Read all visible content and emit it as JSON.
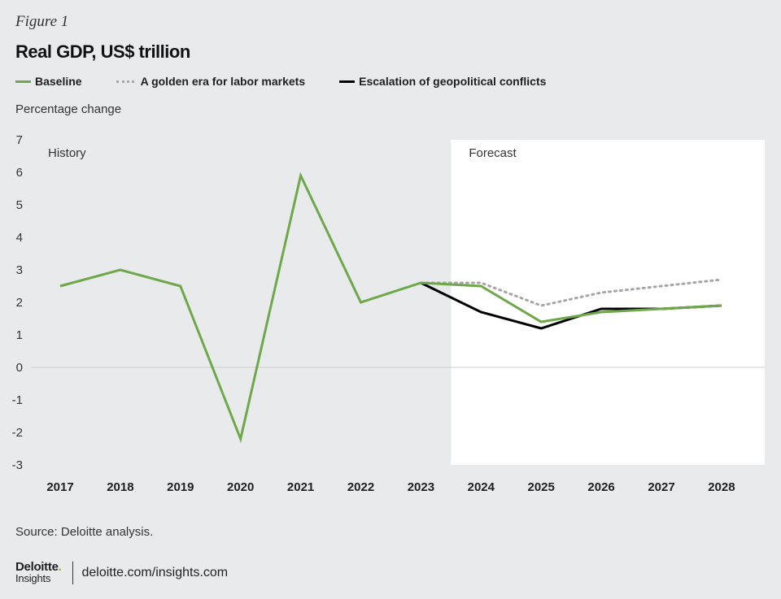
{
  "figure_label": "Figure 1",
  "title": "Real GDP, US$ trillion",
  "legend": [
    {
      "name": "Baseline",
      "color": "#6ea84a",
      "style": "solid"
    },
    {
      "name": "A golden era for labor markets",
      "color": "#a6a6a6",
      "style": "dotted"
    },
    {
      "name": "Escalation of geopolitical conflicts",
      "color": "#000000",
      "style": "solid"
    }
  ],
  "sublabel": "Percentage change",
  "chart_data": {
    "type": "line",
    "title": "Real GDP, US$ trillion",
    "ylabel": "Percentage change",
    "xlabel": "",
    "ylim": [
      -3,
      7
    ],
    "yticks": [
      "7",
      "6",
      "5",
      "4",
      "3",
      "2",
      "1",
      "0",
      "-1",
      "-2",
      "-3"
    ],
    "categories": [
      "2017",
      "2018",
      "2019",
      "2020",
      "2021",
      "2022",
      "2023",
      "2024",
      "2025",
      "2026",
      "2027",
      "2028"
    ],
    "history_label": "History",
    "forecast_label": "Forecast",
    "series": [
      {
        "name": "Baseline",
        "color": "#6ea84a",
        "dash": false,
        "values": [
          2.5,
          3.0,
          2.5,
          -2.2,
          5.9,
          2.0,
          2.6,
          2.5,
          1.4,
          1.7,
          1.8,
          1.9
        ]
      },
      {
        "name": "A golden era for labor markets",
        "color": "#a6a6a6",
        "dash": true,
        "values": [
          null,
          null,
          null,
          null,
          null,
          null,
          2.6,
          2.6,
          1.9,
          2.3,
          2.5,
          2.7
        ]
      },
      {
        "name": "Escalation of geopolitical conflicts",
        "color": "#000000",
        "dash": false,
        "values": [
          null,
          null,
          null,
          null,
          null,
          null,
          2.6,
          1.7,
          1.2,
          1.8,
          1.8,
          1.9
        ]
      }
    ]
  },
  "source": "Source: Deloitte analysis.",
  "footer": {
    "brand_name": "Deloitte",
    "brand_dot": ".",
    "brand_sub": "Insights",
    "url": "deloitte.com/insights.com"
  }
}
